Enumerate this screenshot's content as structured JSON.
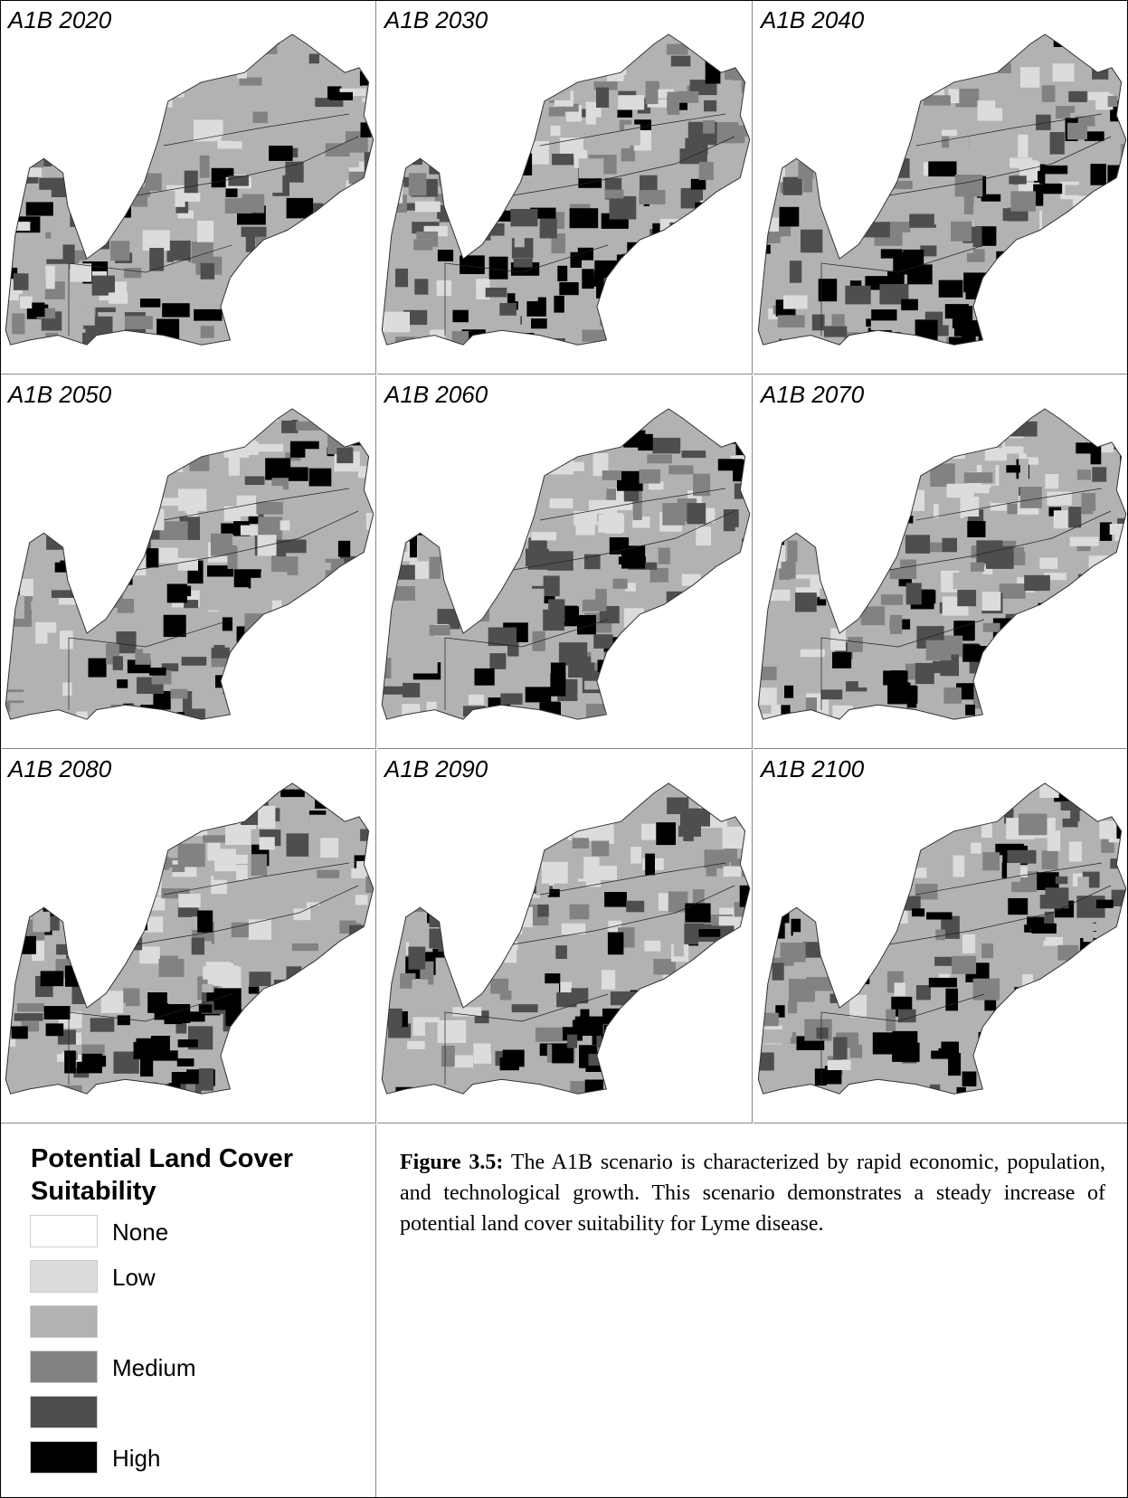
{
  "panels": [
    {
      "label": "A1B 2020"
    },
    {
      "label": "A1B 2030"
    },
    {
      "label": "A1B 2040"
    },
    {
      "label": "A1B 2050"
    },
    {
      "label": "A1B 2060"
    },
    {
      "label": "A1B 2070"
    },
    {
      "label": "A1B 2080"
    },
    {
      "label": "A1B 2090"
    },
    {
      "label": "A1B 2100"
    }
  ],
  "legend": {
    "title": "Potential Land Cover Suitability",
    "items": [
      {
        "label": "None",
        "color": "#ffffff"
      },
      {
        "label": "Low",
        "color": "#dcdcdc"
      },
      {
        "label": null,
        "color": "#b2b2b2"
      },
      {
        "label": "Medium",
        "color": "#828282"
      },
      {
        "label": null,
        "color": "#4e4e4e"
      },
      {
        "label": "High",
        "color": "#000000"
      }
    ]
  },
  "caption": {
    "lead": "Figure 3.5:",
    "text": "The A1B scenario is characterized by rapid economic, population, and technological growth. This scenario demonstrates a steady increase of potential land cover suitability for Lyme disease."
  }
}
